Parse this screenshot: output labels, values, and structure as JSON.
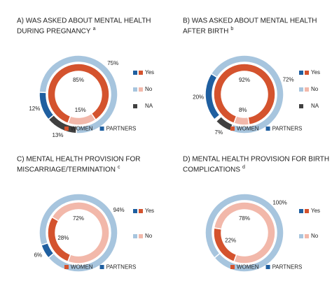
{
  "chart_data": [
    {
      "type": "donut",
      "title": [
        "A) WAS ASKED ABOUT MENTAL HEALTH",
        "DURING PREGNANCY"
      ],
      "title_superscript": "a",
      "categories": [
        "Yes",
        "No",
        "NA"
      ],
      "series": [
        {
          "name": "WOMEN",
          "colors": [
            "#d4532e",
            "#f2b8aa",
            null
          ],
          "values": [
            85,
            15,
            null
          ],
          "value_labels": [
            "85%",
            "15%",
            null
          ]
        },
        {
          "name": "PARTNERS",
          "colors": [
            "#1f5fa0",
            "#a7c5de",
            "#404040"
          ],
          "values": [
            12,
            75,
            13
          ],
          "value_labels": [
            "12%",
            "75%",
            "13%"
          ]
        }
      ]
    },
    {
      "type": "donut",
      "title": [
        "B) WAS ASKED ABOUT MENTAL HEALTH",
        "AFTER BIRTH"
      ],
      "title_superscript": "b",
      "categories": [
        "Yes",
        "No",
        "NA"
      ],
      "series": [
        {
          "name": "WOMEN",
          "colors": [
            "#d4532e",
            "#f2b8aa",
            null
          ],
          "values": [
            92,
            8,
            null
          ],
          "value_labels": [
            "92%",
            "8%",
            null
          ]
        },
        {
          "name": "PARTNERS",
          "colors": [
            "#1f5fa0",
            "#a7c5de",
            "#404040"
          ],
          "values": [
            20,
            72,
            7
          ],
          "value_labels": [
            "20%",
            "72%",
            "7%"
          ]
        }
      ]
    },
    {
      "type": "donut",
      "title": [
        "C) MENTAL HEALTH PROVISION FOR",
        "MISCARRIAGE/TERMINATION"
      ],
      "title_superscript": "c",
      "categories": [
        "Yes",
        "No"
      ],
      "series": [
        {
          "name": "WOMEN",
          "colors": [
            "#d4532e",
            "#f2b8aa"
          ],
          "values": [
            28,
            72
          ],
          "value_labels": [
            "28%",
            "72%"
          ]
        },
        {
          "name": "PARTNERS",
          "colors": [
            "#1f5fa0",
            "#a7c5de"
          ],
          "values": [
            6,
            94
          ],
          "value_labels": [
            "6%",
            "94%"
          ]
        }
      ]
    },
    {
      "type": "donut",
      "title": [
        "D) MENTAL HEALTH PROVISION FOR BIRTH",
        "COMPLICATIONS"
      ],
      "title_superscript": "d",
      "categories": [
        "Yes",
        "No"
      ],
      "series": [
        {
          "name": "WOMEN",
          "colors": [
            "#d4532e",
            "#f2b8aa"
          ],
          "values": [
            22,
            78
          ],
          "value_labels": [
            "22%",
            "78%"
          ]
        },
        {
          "name": "PARTNERS",
          "colors": [
            "#1f5fa0",
            "#a7c5de"
          ],
          "values": [
            0,
            100
          ],
          "value_labels": [
            null,
            "100%"
          ]
        }
      ]
    }
  ]
}
